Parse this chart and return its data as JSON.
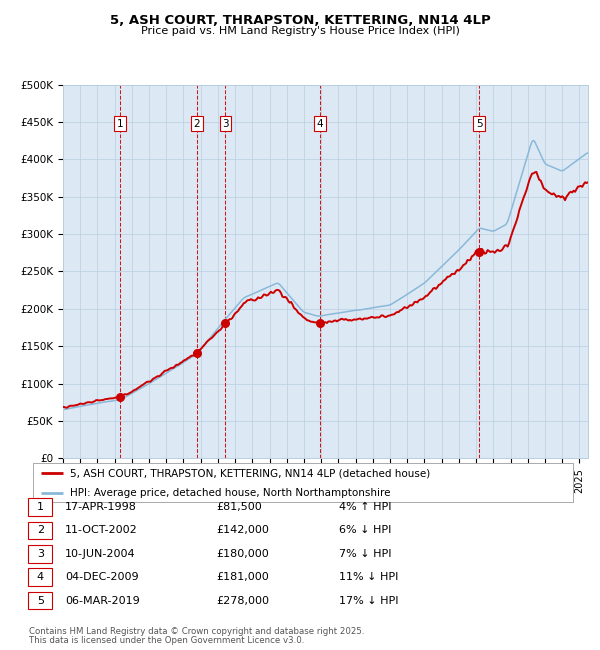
{
  "title_line1": "5, ASH COURT, THRAPSTON, KETTERING, NN14 4LP",
  "title_line2": "Price paid vs. HM Land Registry's House Price Index (HPI)",
  "fig_bg_color": "#ffffff",
  "plot_bg_color": "#dce9f5",
  "red_line_label": "5, ASH COURT, THRAPSTON, KETTERING, NN14 4LP (detached house)",
  "blue_line_label": "HPI: Average price, detached house, North Northamptonshire",
  "transactions": [
    {
      "num": 1,
      "date": "17-APR-1998",
      "price": 81500,
      "pct": "4%",
      "dir": "↑",
      "year_x": 1998.29
    },
    {
      "num": 2,
      "date": "11-OCT-2002",
      "price": 142000,
      "pct": "6%",
      "dir": "↓",
      "year_x": 2002.78
    },
    {
      "num": 3,
      "date": "10-JUN-2004",
      "price": 180000,
      "pct": "7%",
      "dir": "↓",
      "year_x": 2004.44
    },
    {
      "num": 4,
      "date": "04-DEC-2009",
      "price": 181000,
      "pct": "11%",
      "dir": "↓",
      "year_x": 2009.92
    },
    {
      "num": 5,
      "date": "06-MAR-2019",
      "price": 278000,
      "pct": "17%",
      "dir": "↓",
      "year_x": 2019.18
    }
  ],
  "footer_line1": "Contains HM Land Registry data © Crown copyright and database right 2025.",
  "footer_line2": "This data is licensed under the Open Government Licence v3.0.",
  "ylim_max": 500000,
  "yticks": [
    0,
    50000,
    100000,
    150000,
    200000,
    250000,
    300000,
    350000,
    400000,
    450000,
    500000
  ],
  "xlim_min": 1995.0,
  "xlim_max": 2025.5,
  "red_color": "#cc0000",
  "blue_color": "#8ab8d8",
  "dashed_color": "#cc0000",
  "marker_color": "#cc0000",
  "grid_color": "#b8cfe0",
  "label_box_color": "#ffffff",
  "label_box_edge": "#cc0000",
  "legend_border_color": "#aaaaaa"
}
